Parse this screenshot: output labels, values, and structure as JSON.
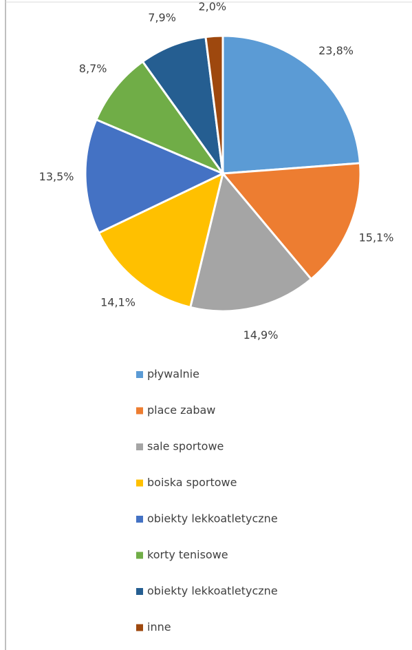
{
  "chart_data": {
    "type": "pie",
    "categories": [
      "pływalnie",
      "place zabaw",
      "sale sportowe",
      "boiska sportowe",
      "obiekty lekkoatletyczne",
      "korty tenisowe",
      "obiekty lekkoatletyczne",
      "inne"
    ],
    "values": [
      23.8,
      15.1,
      14.9,
      14.1,
      13.5,
      8.7,
      7.9,
      2.0
    ],
    "value_labels": [
      "23,8%",
      "15,1%",
      "14,9%",
      "14,1%",
      "13,5%",
      "8,7%",
      "7,9%",
      "2,0%"
    ],
    "colors": [
      "#5b9bd5",
      "#ed7d31",
      "#a5a5a5",
      "#ffc000",
      "#4472c4",
      "#70ad47",
      "#255e91",
      "#9e480e"
    ],
    "legend": "bottom"
  }
}
